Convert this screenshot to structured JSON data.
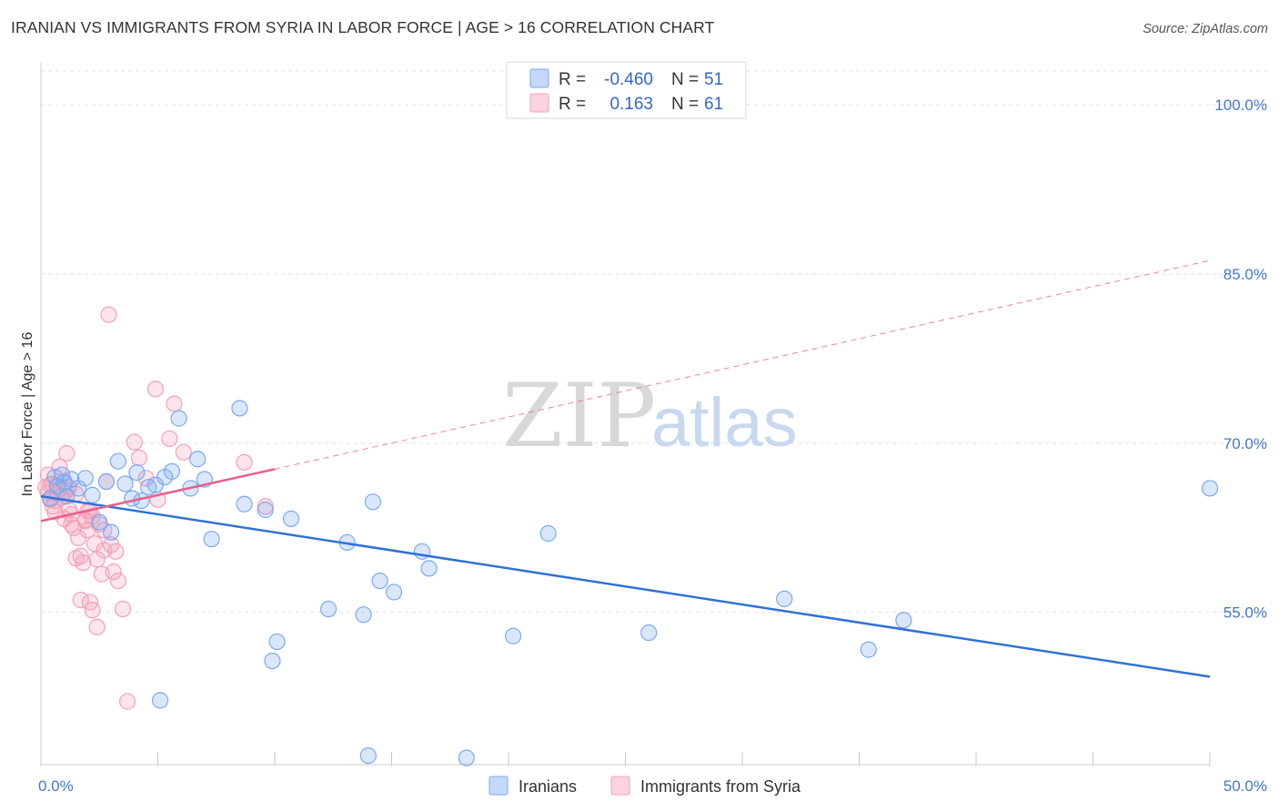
{
  "header": {
    "title": "IRANIAN VS IMMIGRANTS FROM SYRIA IN LABOR FORCE | AGE > 16 CORRELATION CHART",
    "source": "Source: ZipAtlas.com"
  },
  "watermark": {
    "zip": "ZIP",
    "atlas": "atlas"
  },
  "legend": {
    "rows": [
      {
        "r_label": "R =",
        "r_value": "-0.460",
        "n_label": "N =",
        "n_value": "51",
        "color": "#7aaaf0"
      },
      {
        "r_label": "R =",
        "r_value": "0.163",
        "n_label": "N =",
        "n_value": "61",
        "color": "#f4a0b8"
      }
    ]
  },
  "chart_data": {
    "type": "scatter",
    "title": "IRANIAN VS IMMIGRANTS FROM SYRIA IN LABOR FORCE | AGE > 16 CORRELATION CHART",
    "xlabel": "",
    "ylabel": "In Labor Force | Age > 16",
    "xlim": [
      0,
      50
    ],
    "ylim": [
      41.5,
      103
    ],
    "x_tick_labels": [
      "0.0%",
      "50.0%"
    ],
    "y_ticks": [
      55,
      70,
      85,
      100
    ],
    "y_tick_labels": [
      "55.0%",
      "70.0%",
      "85.0%",
      "100.0%"
    ],
    "grid": true,
    "legend_position": "top-center",
    "series": [
      {
        "name": "Iranians",
        "color": "#7aaaf0",
        "line_color": "#2f72d6",
        "trend": {
          "x": [
            0,
            50
          ],
          "y": [
            65.3,
            49.3
          ],
          "style": "solid"
        },
        "points": [
          [
            0.4,
            65.1
          ],
          [
            0.6,
            67.0
          ],
          [
            0.7,
            66.2
          ],
          [
            1.0,
            66.5
          ],
          [
            1.1,
            65.3
          ],
          [
            1.3,
            66.8
          ],
          [
            1.6,
            66.0
          ],
          [
            1.9,
            66.9
          ],
          [
            2.2,
            65.4
          ],
          [
            2.5,
            63.0
          ],
          [
            2.8,
            66.6
          ],
          [
            3.0,
            62.1
          ],
          [
            3.3,
            68.4
          ],
          [
            3.6,
            66.4
          ],
          [
            3.9,
            65.1
          ],
          [
            4.1,
            67.4
          ],
          [
            4.3,
            64.9
          ],
          [
            4.6,
            66.1
          ],
          [
            4.9,
            66.3
          ],
          [
            5.3,
            67.0
          ],
          [
            5.6,
            67.5
          ],
          [
            5.9,
            72.2
          ],
          [
            6.4,
            66.0
          ],
          [
            6.7,
            68.6
          ],
          [
            7.0,
            66.8
          ],
          [
            7.3,
            61.5
          ],
          [
            8.5,
            73.1
          ],
          [
            8.7,
            64.6
          ],
          [
            9.6,
            64.1
          ],
          [
            9.9,
            50.7
          ],
          [
            10.1,
            52.4
          ],
          [
            10.7,
            63.3
          ],
          [
            12.3,
            55.3
          ],
          [
            13.1,
            61.2
          ],
          [
            13.8,
            54.8
          ],
          [
            14.0,
            42.3
          ],
          [
            14.2,
            64.8
          ],
          [
            14.5,
            57.8
          ],
          [
            15.1,
            56.8
          ],
          [
            16.3,
            60.4
          ],
          [
            16.6,
            58.9
          ],
          [
            18.2,
            42.1
          ],
          [
            20.2,
            52.9
          ],
          [
            21.7,
            62.0
          ],
          [
            26.0,
            53.2
          ],
          [
            31.8,
            56.2
          ],
          [
            35.4,
            51.7
          ],
          [
            36.9,
            54.3
          ],
          [
            5.1,
            47.2
          ],
          [
            50.0,
            66.0
          ],
          [
            0.9,
            67.2
          ]
        ]
      },
      {
        "name": "Immigrants from Syria",
        "color": "#f4a0b8",
        "line_color": "#e8608c",
        "trend": {
          "x": [
            0,
            10
          ],
          "y": [
            63.1,
            67.7
          ],
          "style": "solid",
          "extended": {
            "x": [
              10,
              50
            ],
            "y": [
              67.7,
              86.2
            ],
            "style": "dashed"
          }
        },
        "points": [
          [
            0.2,
            66.1
          ],
          [
            0.3,
            65.6
          ],
          [
            0.4,
            65.0
          ],
          [
            0.5,
            66.4
          ],
          [
            0.6,
            64.9
          ],
          [
            0.7,
            65.5
          ],
          [
            0.8,
            66.0
          ],
          [
            0.9,
            65.2
          ],
          [
            1.0,
            66.6
          ],
          [
            1.1,
            65.8
          ],
          [
            0.3,
            67.2
          ],
          [
            0.5,
            64.4
          ],
          [
            0.8,
            67.9
          ],
          [
            1.1,
            69.1
          ],
          [
            1.2,
            64.1
          ],
          [
            1.3,
            63.7
          ],
          [
            1.4,
            62.5
          ],
          [
            1.5,
            65.5
          ],
          [
            1.6,
            61.6
          ],
          [
            1.7,
            60.0
          ],
          [
            1.8,
            59.4
          ],
          [
            1.9,
            63.1
          ],
          [
            2.0,
            62.3
          ],
          [
            2.1,
            64.0
          ],
          [
            2.2,
            63.5
          ],
          [
            2.3,
            61.1
          ],
          [
            2.4,
            59.7
          ],
          [
            2.5,
            62.8
          ],
          [
            2.6,
            58.4
          ],
          [
            2.7,
            60.5
          ],
          [
            1.3,
            62.8
          ],
          [
            1.5,
            59.8
          ],
          [
            1.7,
            56.1
          ],
          [
            1.9,
            63.2
          ],
          [
            2.1,
            55.9
          ],
          [
            2.2,
            55.2
          ],
          [
            2.4,
            53.7
          ],
          [
            2.8,
            66.6
          ],
          [
            3.0,
            61.0
          ],
          [
            3.2,
            60.4
          ],
          [
            2.7,
            62.3
          ],
          [
            3.1,
            58.6
          ],
          [
            3.3,
            57.8
          ],
          [
            3.5,
            55.3
          ],
          [
            3.7,
            47.1
          ],
          [
            4.0,
            70.1
          ],
          [
            4.2,
            68.7
          ],
          [
            4.5,
            66.9
          ],
          [
            4.9,
            74.8
          ],
          [
            5.0,
            65.0
          ],
          [
            5.5,
            70.4
          ],
          [
            5.7,
            73.5
          ],
          [
            6.1,
            69.2
          ],
          [
            2.9,
            81.4
          ],
          [
            8.7,
            68.3
          ],
          [
            9.6,
            64.4
          ],
          [
            1.0,
            63.3
          ],
          [
            0.6,
            63.9
          ],
          [
            1.2,
            66.1
          ],
          [
            0.4,
            66.3
          ],
          [
            2.0,
            64.0
          ]
        ]
      }
    ]
  },
  "bottom_legend": {
    "items": [
      {
        "label": "Iranians",
        "color": "#7aaaf0"
      },
      {
        "label": "Immigrants from Syria",
        "color": "#f4a0b8"
      }
    ]
  }
}
